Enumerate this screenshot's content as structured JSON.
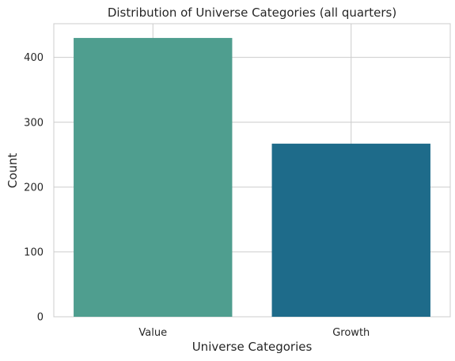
{
  "chart_data": {
    "type": "bar",
    "title": "Distribution of Universe Categories (all quarters)",
    "xlabel": "Universe Categories",
    "ylabel": "Count",
    "categories": [
      "Value",
      "Growth"
    ],
    "values": [
      430,
      267
    ],
    "ylim": [
      0,
      452
    ],
    "yticks": [
      0,
      100,
      200,
      300,
      400
    ],
    "colors": [
      "#4f9e8f",
      "#1e6b8a"
    ],
    "grid": true
  }
}
